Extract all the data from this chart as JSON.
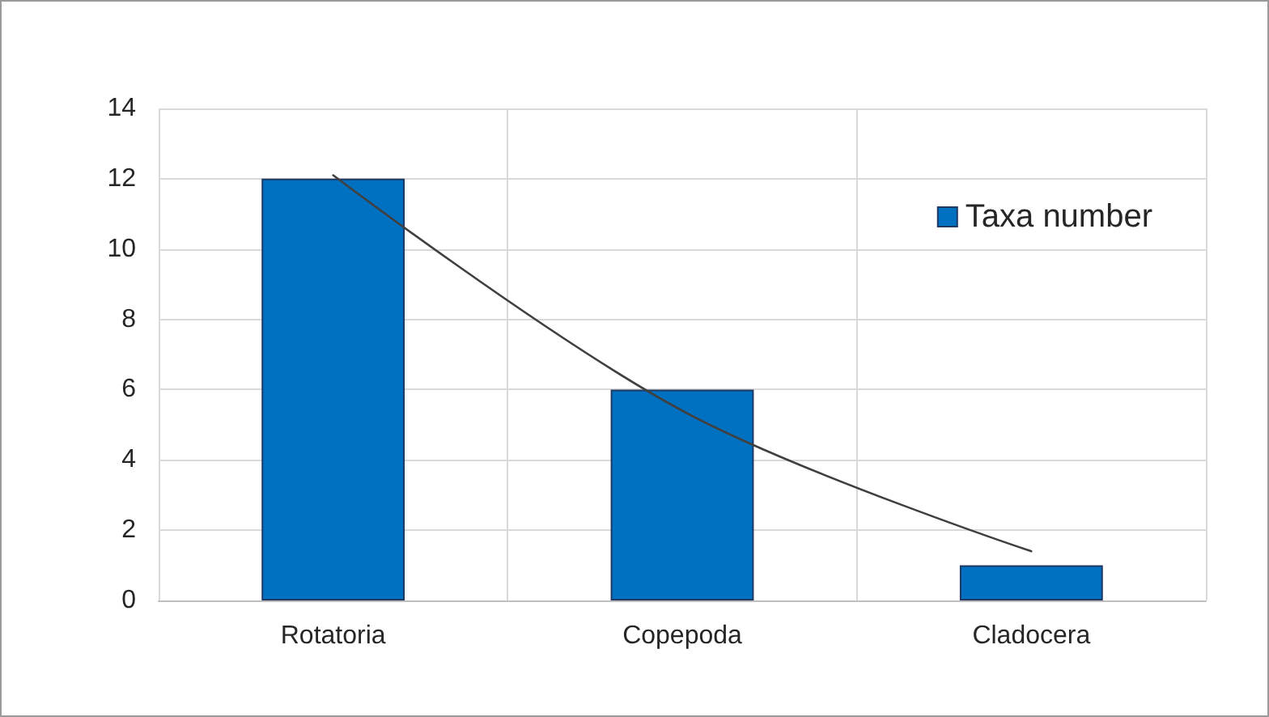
{
  "chart_data": {
    "type": "bar",
    "categories": [
      "Rotatoria",
      "Copepoda",
      "Cladocera"
    ],
    "series": [
      {
        "name": "Taxa number",
        "color": "#0070c0",
        "values": [
          12,
          6,
          1
        ]
      },
      {
        "type": "line",
        "color": "#404040",
        "x": [
          "Rotatoria",
          "Copepoda",
          "Cladocera"
        ],
        "values": [
          12.1,
          5.4,
          1.4
        ]
      }
    ],
    "ylim": [
      0,
      14
    ],
    "yticks": [
      0,
      2,
      4,
      6,
      8,
      10,
      12,
      14
    ],
    "grid": true,
    "legend": "top right"
  }
}
